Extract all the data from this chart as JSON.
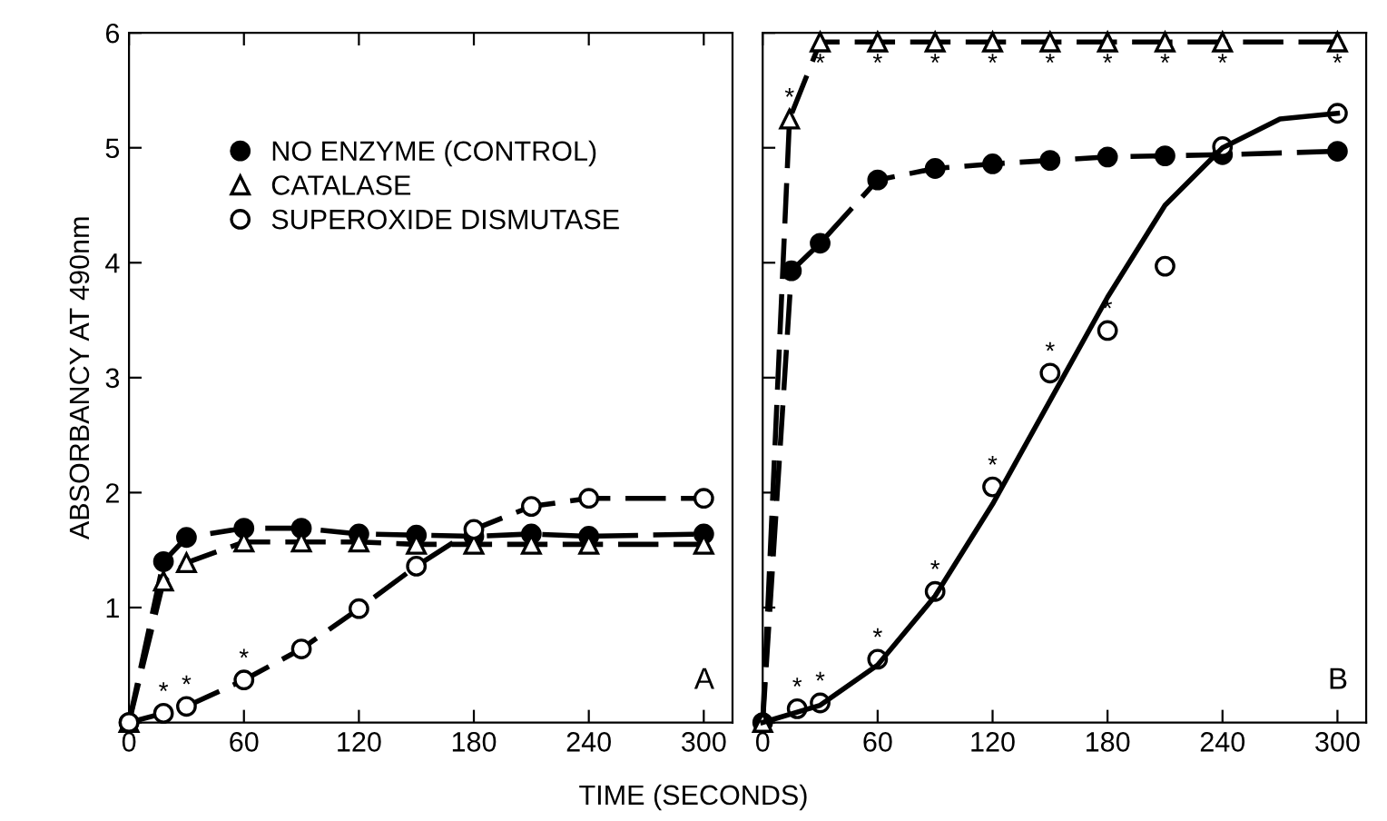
{
  "chart_data": [
    {
      "type": "line",
      "ylabel": "ABSORBANCY AT 490nm",
      "xlabel": "TIME (SECONDS)",
      "xlim": [
        0,
        315
      ],
      "xticks": [
        0,
        60,
        120,
        180,
        240,
        300
      ],
      "ylim": [
        0,
        6
      ],
      "yticks": [
        {
          "value": 0,
          "label": null
        },
        1,
        2,
        3,
        4,
        5,
        6
      ],
      "legend": "top left",
      "line_style": "dashed",
      "grid": false,
      "series": [
        {
          "name": "NO ENZYME (CONTROL)",
          "color": "#000000",
          "marker": "circle",
          "x": [
            0,
            18,
            30,
            60,
            90,
            120,
            150,
            180,
            210,
            240,
            300
          ],
          "values": [
            0,
            1.4,
            1.61,
            1.69,
            1.69,
            1.64,
            1.63,
            1.62,
            1.64,
            1.62,
            1.64
          ]
        },
        {
          "name": "CATALASE",
          "color": "#ffffff",
          "marker": "triangle",
          "x": [
            0,
            18,
            30,
            60,
            90,
            120,
            150,
            180,
            210,
            240,
            300
          ],
          "values": [
            0,
            1.23,
            1.39,
            1.57,
            1.57,
            1.57,
            1.55,
            1.55,
            1.55,
            1.55,
            1.55
          ]
        },
        {
          "name": "SUPEROXIDE DISMUTASE",
          "color": "#ffffff",
          "marker": "circle",
          "x": [
            0,
            18,
            30,
            60,
            90,
            120,
            150,
            180,
            210,
            240,
            300
          ],
          "values": [
            0,
            0.08,
            0.14,
            0.37,
            0.64,
            0.99,
            1.36,
            1.68,
            1.88,
            1.95,
            1.95
          ]
        }
      ],
      "annotations": [
        "A",
        {
          "text": "*",
          "x": 18,
          "y": 0.08
        },
        {
          "text": "*",
          "x": 30,
          "y": 0.14
        },
        {
          "text": "*",
          "x": 60,
          "y": 0.37
        }
      ]
    },
    {
      "type": "line",
      "xlim": [
        0,
        315
      ],
      "xticks": [
        0,
        60,
        120,
        180,
        240,
        300
      ],
      "ylim": [
        0,
        6
      ],
      "yticks": [
        {
          "value": 0,
          "label": null
        },
        {
          "value": 1,
          "label": null
        },
        {
          "value": 2,
          "label": null
        },
        {
          "value": 3,
          "label": null
        },
        {
          "value": 4,
          "label": null
        },
        {
          "value": 5,
          "label": null
        },
        {
          "value": 6,
          "label": null
        }
      ],
      "tick_labels": "x",
      "line_style": "dashed",
      "grid": false,
      "series": [
        {
          "color": "#000000",
          "marker": "circle",
          "x": [
            0,
            15,
            30,
            60,
            90,
            120,
            150,
            180,
            210,
            240,
            300
          ],
          "values": [
            0,
            3.93,
            4.17,
            4.72,
            4.82,
            4.86,
            4.89,
            4.92,
            4.93,
            4.94,
            4.97
          ]
        },
        {
          "color": "#ffffff",
          "marker": "triangle",
          "x": [
            0,
            14,
            30,
            60,
            90,
            120,
            150,
            180,
            210,
            240,
            300
          ],
          "values": [
            0,
            5.25,
            5.92,
            5.92,
            5.92,
            5.92,
            5.92,
            5.92,
            5.92,
            5.92,
            5.92
          ]
        },
        {
          "type": "scatter",
          "color": "#ffffff",
          "marker": "circle",
          "x": [
            18,
            30,
            60,
            90,
            120,
            150,
            180,
            210,
            240,
            300
          ],
          "values": [
            0.12,
            0.17,
            0.55,
            1.14,
            2.05,
            3.04,
            3.41,
            3.97,
            5.01,
            5.3
          ]
        },
        {
          "type": "line",
          "color": "#000000",
          "marker": "none",
          "line_style": "solid",
          "x": [
            0,
            30,
            60,
            90,
            120,
            150,
            180,
            210,
            240,
            270,
            300
          ],
          "values": [
            0,
            0.15,
            0.5,
            1.1,
            1.9,
            2.8,
            3.7,
            4.5,
            5.0,
            5.25,
            5.3
          ]
        }
      ],
      "annotations": [
        "B",
        {
          "text": "*",
          "x": 14,
          "y": 5.25
        },
        {
          "text": "*",
          "x": 30,
          "y": 5.92
        },
        {
          "text": "*",
          "x": 60,
          "y": 5.92
        },
        {
          "text": "*",
          "x": 90,
          "y": 5.92
        },
        {
          "text": "*",
          "x": 120,
          "y": 5.92
        },
        {
          "text": "*",
          "x": 150,
          "y": 5.92
        },
        {
          "text": "*",
          "x": 180,
          "y": 5.92
        },
        {
          "text": "*",
          "x": 210,
          "y": 5.92
        },
        {
          "text": "*",
          "x": 240,
          "y": 5.92
        },
        {
          "text": "*",
          "x": 300,
          "y": 5.92
        },
        {
          "text": "*",
          "x": 18,
          "y": 0.12
        },
        {
          "text": "*",
          "x": 30,
          "y": 0.17
        },
        {
          "text": "*",
          "x": 60,
          "y": 0.55
        },
        {
          "text": "*",
          "x": 90,
          "y": 1.14
        },
        {
          "text": "*",
          "x": 120,
          "y": 2.05
        },
        {
          "text": "*",
          "x": 150,
          "y": 3.04
        },
        {
          "text": "*",
          "x": 180,
          "y": 3.41
        }
      ]
    }
  ]
}
